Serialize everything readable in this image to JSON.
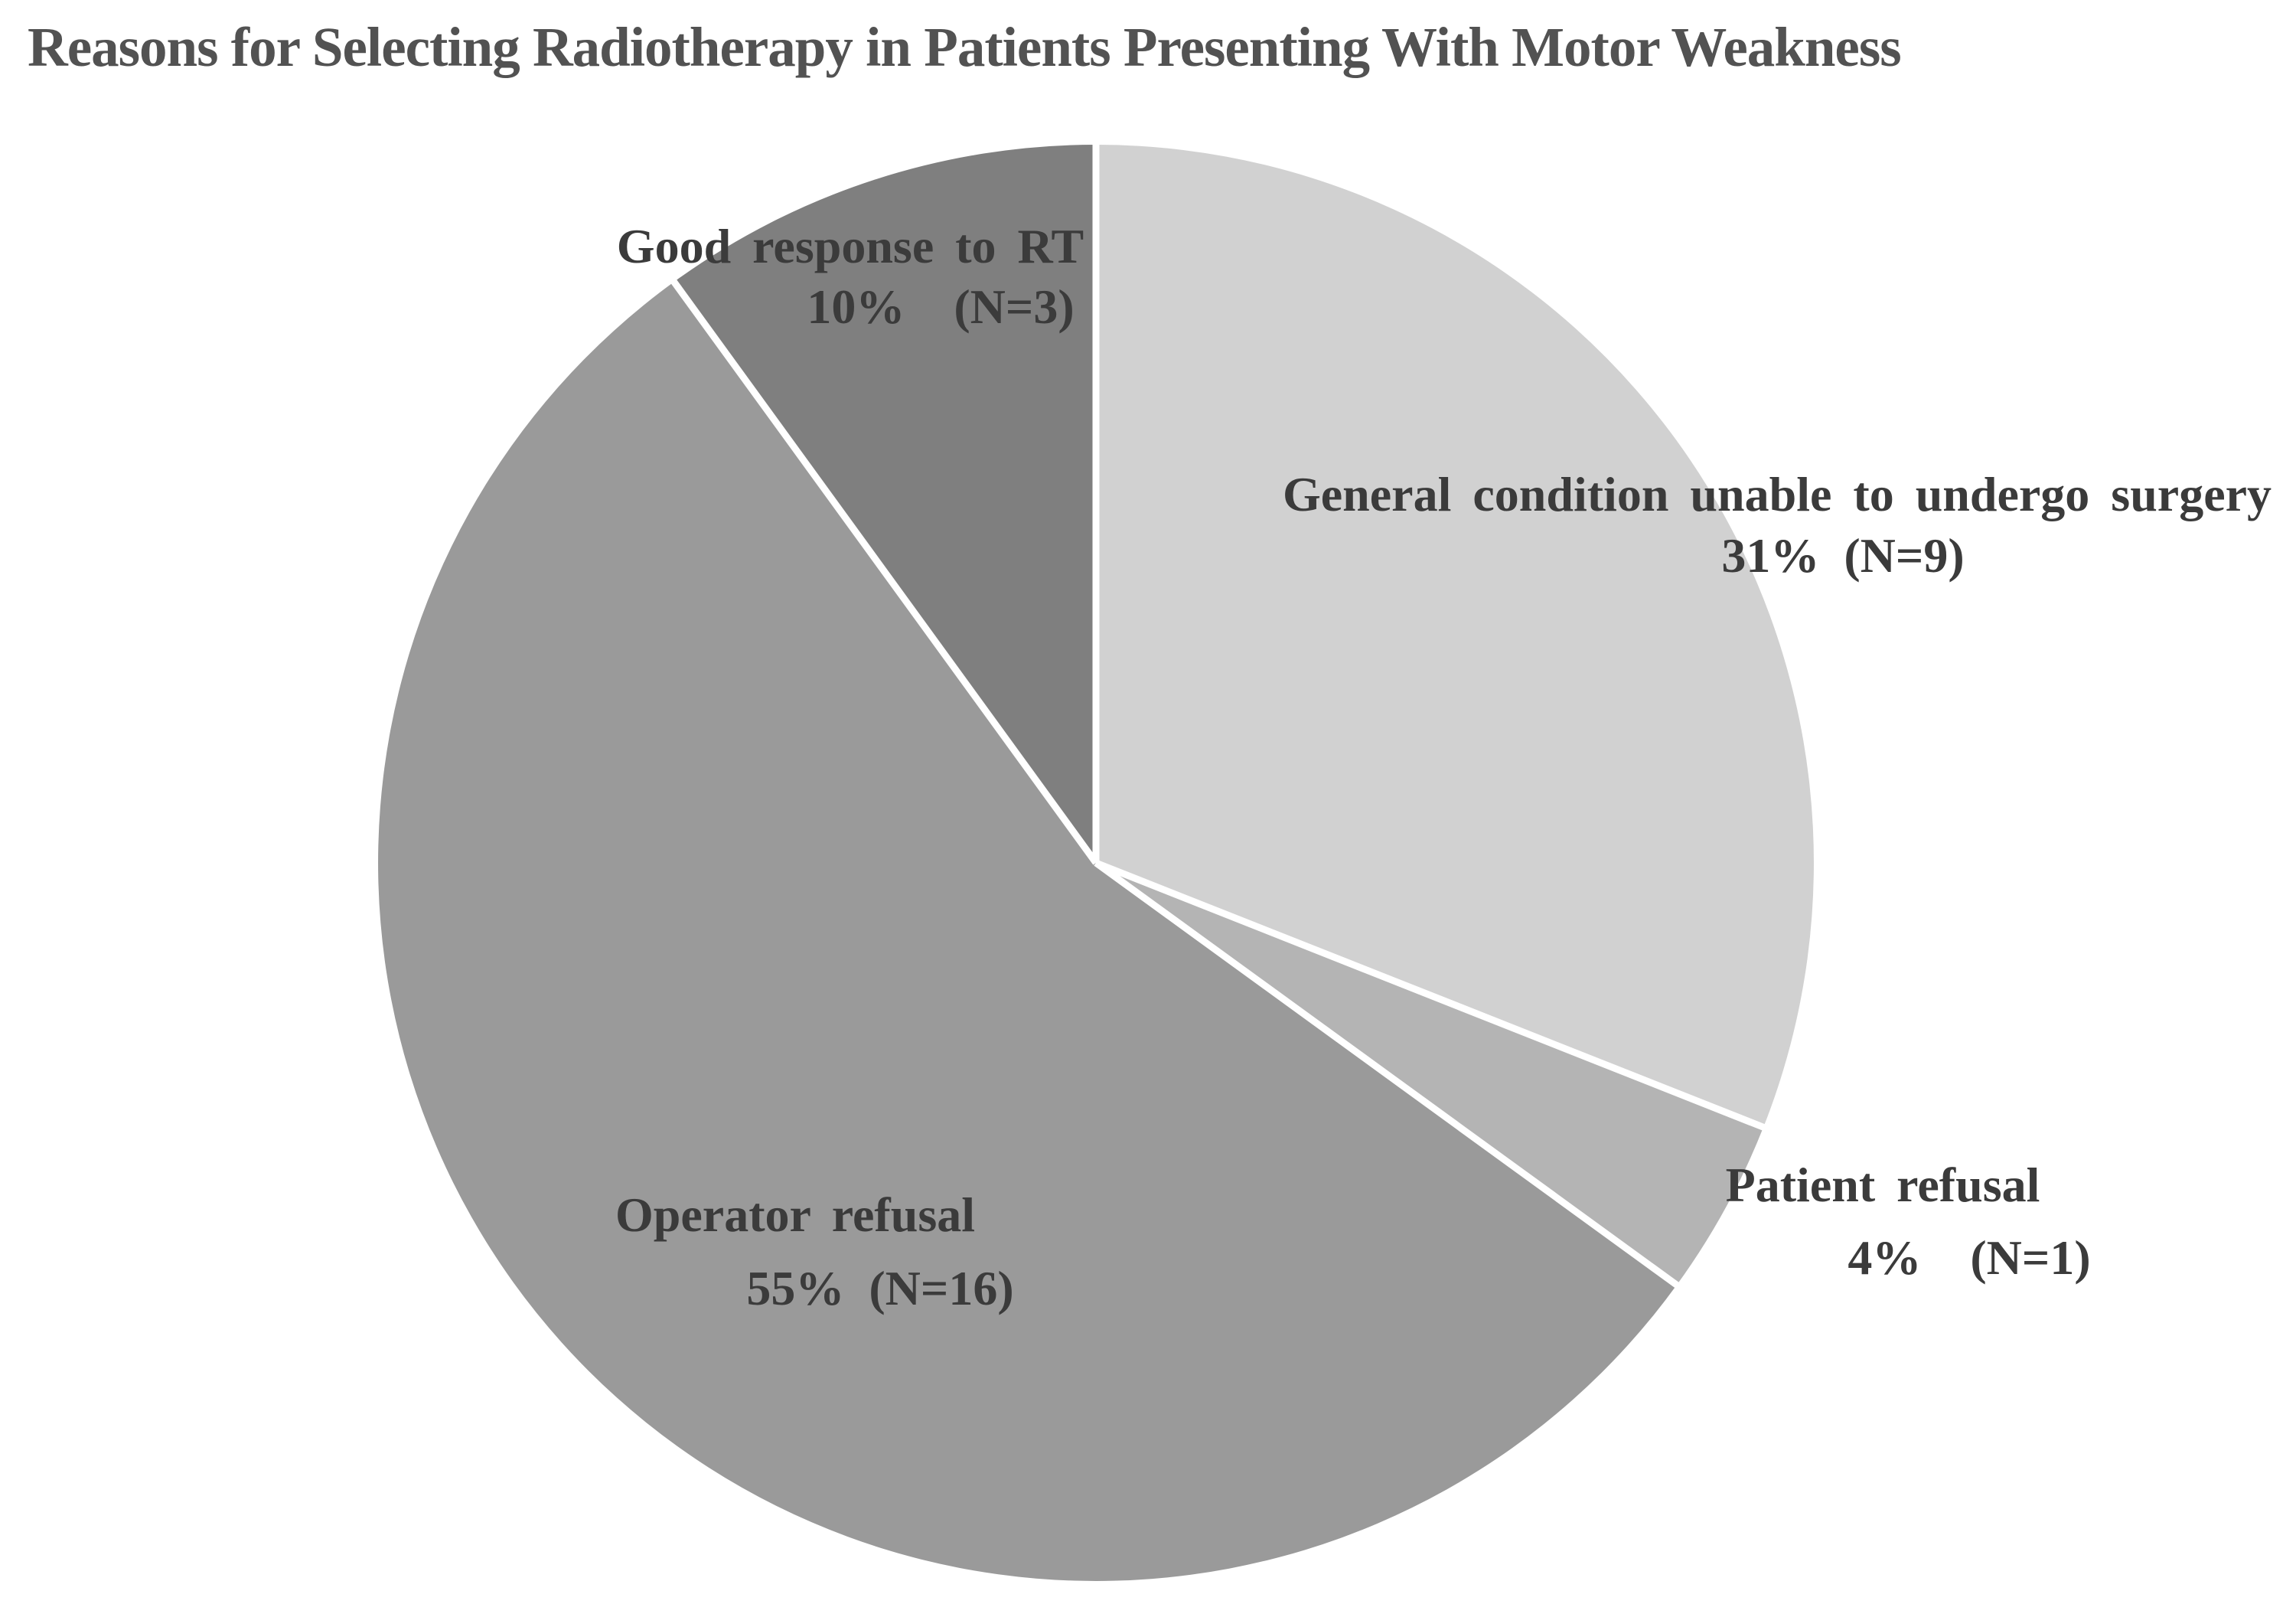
{
  "chart_data": {
    "type": "pie",
    "title": "Reasons for Selecting Radiotherapy in Patients Presenting With Motor Weakness",
    "direction": "clockwise",
    "start_angle": "12 o'clock",
    "divider_color": "#ffffff",
    "background_color": "#ffffff",
    "slices": [
      {
        "label": "General condition unable to undergo surgery",
        "slug": "general-condition-unable-to-undergo-surgery",
        "percent": 31,
        "n": 9,
        "pct_line": "31%  (N=9)",
        "color": "#d1d1d1"
      },
      {
        "label": "Patient refusal",
        "slug": "patient-refusal",
        "percent": 4,
        "n": 1,
        "pct_line": "4%    (N=1)",
        "color": "#b4b4b4"
      },
      {
        "label": "Operator refusal",
        "slug": "operator-refusal",
        "percent": 55,
        "n": 16,
        "pct_line": "55%  (N=16)",
        "color": "#9a9a9a"
      },
      {
        "label": "Good response to RT",
        "slug": "good-response-to-rt",
        "percent": 10,
        "n": 3,
        "pct_line": "10%    (N=3)",
        "color": "#7f7f7f"
      }
    ]
  }
}
